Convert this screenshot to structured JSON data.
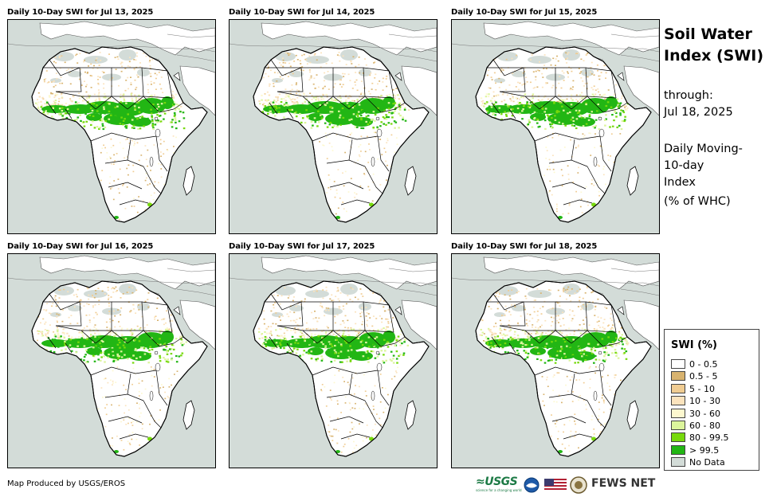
{
  "panels": [
    {
      "title": "Daily 10-Day SWI for Jul 13, 2025"
    },
    {
      "title": "Daily 10-Day SWI for Jul 14, 2025"
    },
    {
      "title": "Daily 10-Day SWI for Jul 15, 2025"
    },
    {
      "title": "Daily 10-Day SWI for Jul 16, 2025"
    },
    {
      "title": "Daily 10-Day SWI for Jul 17, 2025"
    },
    {
      "title": "Daily 10-Day SWI for Jul 18, 2025"
    }
  ],
  "side": {
    "title_line1": "Soil Water",
    "title_line2": "Index (SWI)",
    "through_label": "through:",
    "through_date": "Jul 18, 2025",
    "desc_line1": "Daily Moving-",
    "desc_line2": "10-day",
    "desc_line3": "Index",
    "desc_line4": "(% of WHC)"
  },
  "legend": {
    "title": "SWI (%)",
    "items": [
      {
        "label": "0 - 0.5",
        "color": "#ffffff"
      },
      {
        "label": "0.5 - 5",
        "color": "#d8b36f"
      },
      {
        "label": "5 - 10",
        "color": "#f0cc92"
      },
      {
        "label": "10 - 30",
        "color": "#fbe3bd"
      },
      {
        "label": "30 - 60",
        "color": "#fdf8cf"
      },
      {
        "label": "60 - 80",
        "color": "#dcf59c"
      },
      {
        "label": "80 - 99.5",
        "color": "#77d90d"
      },
      {
        "label": "> 99.5",
        "color": "#22b614"
      },
      {
        "label": "No Data",
        "color": "#d3dcd8"
      }
    ]
  },
  "footer": {
    "credit": "Map Produced by USGS/EROS",
    "usgs_logo": "≈USGS",
    "usgs_tagline": "science for a changing world",
    "fews_logo": "FEWS NET"
  },
  "icons": [
    "usgs-logo",
    "noaa-logo",
    "us-flag-icon",
    "state-dept-seal",
    "fews-net-logo"
  ]
}
